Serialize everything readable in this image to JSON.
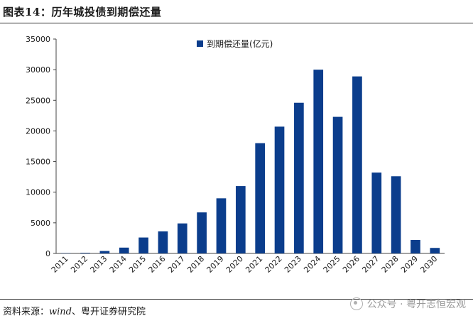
{
  "header": {
    "title": "图表14：历年城投债到期偿还量"
  },
  "footer": {
    "source_label": "资料来源：",
    "source_en": "wind",
    "source_rest": "、粤开证券研究院",
    "watermark": "公众号 · 粤开志恒宏观"
  },
  "chart_data": {
    "type": "bar",
    "categories": [
      "2011",
      "2012",
      "2013",
      "2014",
      "2015",
      "2016",
      "2017",
      "2018",
      "2019",
      "2020",
      "2021",
      "2022",
      "2023",
      "2024",
      "2025",
      "2026",
      "2027",
      "2028",
      "2029",
      "2030"
    ],
    "series": [
      {
        "name": "到期偿还量(亿元)",
        "values": [
          50,
          100,
          400,
          950,
          2600,
          3600,
          4900,
          6700,
          9000,
          11000,
          18000,
          20700,
          24600,
          30000,
          22300,
          28900,
          13200,
          12600,
          2200,
          900
        ],
        "color": "#0b3d8c"
      }
    ],
    "ylim": [
      0,
      35000
    ],
    "yticks": [
      "0",
      "5000",
      "10000",
      "15000",
      "20000",
      "25000",
      "30000",
      "35000"
    ],
    "legend_position": "top-center",
    "grid": false,
    "title": "",
    "xlabel": "",
    "ylabel": ""
  }
}
